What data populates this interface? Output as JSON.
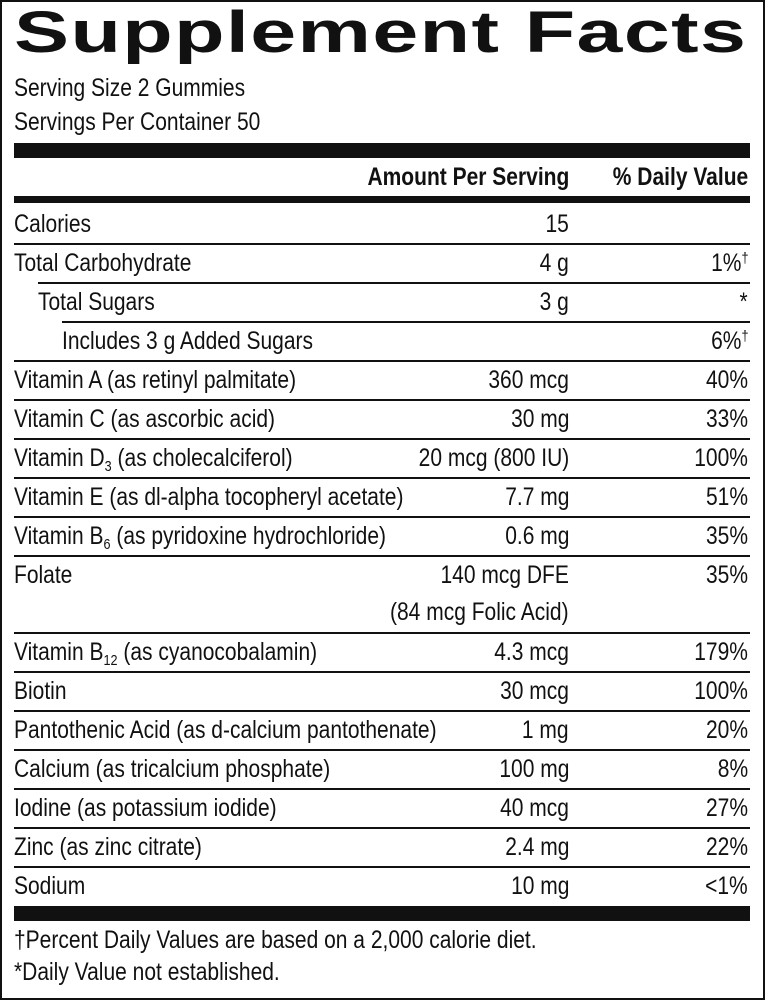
{
  "header": {
    "title": "Supplement Facts",
    "serving_size": "Serving Size 2 Gummies",
    "servings_per_container": "Servings Per Container 50"
  },
  "table": {
    "columns": [
      "Amount Per Serving",
      "% Daily Value"
    ],
    "rows": [
      {
        "name": "Calories",
        "amount": "15"
      },
      {
        "name": "Total Carbohydrate",
        "amount": "4 g",
        "dv": "1%",
        "dv_mark": "†",
        "sub_rows": [
          {
            "name": "Total Sugars",
            "amount": "3 g",
            "dv": "*",
            "sub_rows": [
              {
                "name": "Includes 3 g Added Sugars",
                "dv": "6%",
                "dv_mark": "†"
              }
            ]
          }
        ]
      },
      {
        "name": "Vitamin A (as retinyl palmitate)",
        "amount": "360 mcg",
        "dv": "40%"
      },
      {
        "name": "Vitamin C (as ascorbic acid)",
        "amount": "30 mg",
        "dv": "33%"
      },
      {
        "name": "Vitamin D",
        "name_sub": "3",
        "name_rest": "(as cholecalciferol)",
        "amount": "20 mcg (800 IU)",
        "dv": "100%"
      },
      {
        "name": "Vitamin E (as dl-alpha tocopheryl acetate)",
        "amount": "7.7 mg",
        "dv": "51%"
      },
      {
        "name": "Vitamin B",
        "name_sub": "6",
        "name_rest": "(as pyridoxine hydrochloride)",
        "amount": "0.6 mg",
        "dv": "35%"
      },
      {
        "name": "Folate",
        "amount": "140 mcg DFE",
        "amount_note": "(84 mcg Folic Acid)",
        "dv": "35%"
      },
      {
        "name": "Vitamin B",
        "name_sub": "12",
        "name_rest": "(as cyanocobalamin)",
        "amount": "4.3 mcg",
        "dv": "179%"
      },
      {
        "name": "Biotin",
        "amount": "30 mcg",
        "dv": "100%"
      },
      {
        "name": "Pantothenic Acid (as d-calcium pantothenate)",
        "amount": "1 mg",
        "dv": "20%"
      },
      {
        "name": "Calcium (as tricalcium phosphate)",
        "amount": "100 mg",
        "dv": "8%"
      },
      {
        "name": "Iodine (as potassium iodide)",
        "amount": "40 mcg",
        "dv": "27%"
      },
      {
        "name": "Zinc (as zinc citrate)",
        "amount": "2.4 mg",
        "dv": "22%"
      },
      {
        "name": "Sodium",
        "amount": "10 mg",
        "dv": "<1%"
      }
    ]
  },
  "footnotes": [
    "†Percent Daily Values are based on a 2,000 calorie diet.",
    "*Daily Value not established."
  ]
}
